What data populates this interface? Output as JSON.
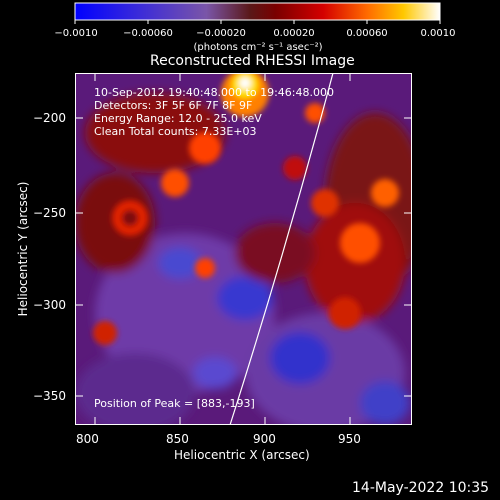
{
  "colorbar": {
    "tick_labels": [
      "−0.0010",
      "−0.00060",
      "−0.00020",
      "0.00020",
      "0.00060",
      "0.0010"
    ],
    "unit_label": "(photons cm⁻² s⁻¹ asec⁻²)"
  },
  "plot": {
    "title": "Reconstructed RHESSI Image",
    "time_range": "10-Sep-2012 19:40:48.000 to 19:46:48.000",
    "detectors": "Detectors: 3F 5F 6F 7F 8F 9F",
    "energy_range": "Energy Range: 12.0 - 25.0 keV",
    "clean_info": "Clean      Total counts: 7.33E+03",
    "peak_position": "Position of Peak = [883,-193]",
    "xlabel": "Heliocentric X (arcsec)",
    "ylabel": "Heliocentric Y (arcsec)",
    "x_ticks": [
      "800",
      "850",
      "900",
      "950"
    ],
    "y_ticks": [
      "−200",
      "−250",
      "−300",
      "−350"
    ]
  },
  "footer": {
    "date_stamp": "14-May-2022 10:35"
  },
  "colors": {
    "limb_line": "#ffffff",
    "frame": "#ffffff"
  }
}
